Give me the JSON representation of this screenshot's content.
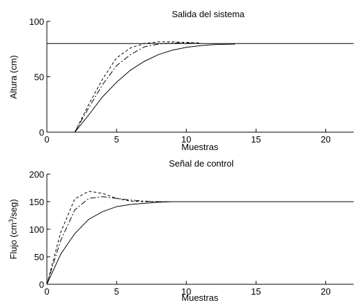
{
  "chart_data": [
    {
      "type": "line",
      "title": "Salida del sistema",
      "xlabel": "Muestras",
      "ylabel": "Altura (cm)",
      "xlim": [
        0,
        22
      ],
      "ylim": [
        0,
        100
      ],
      "xticks": [
        0,
        5,
        10,
        15,
        20
      ],
      "yticks": [
        0,
        50,
        100
      ],
      "grid": false,
      "series": [
        {
          "style": "solid",
          "x": [
            0,
            22
          ],
          "y": [
            80,
            80
          ]
        },
        {
          "style": "solid",
          "x": [
            2,
            3,
            4,
            5,
            6,
            7,
            8,
            9,
            10,
            11,
            12,
            13.5
          ],
          "y": [
            0,
            15.5,
            32,
            45,
            56,
            64,
            70,
            74,
            76.5,
            78,
            79,
            79.5
          ]
        },
        {
          "style": "dashdot",
          "x": [
            2,
            3,
            4,
            5,
            6,
            7,
            8,
            9,
            10,
            11
          ],
          "y": [
            0,
            22,
            43,
            60,
            70,
            77,
            79.5,
            80.5,
            80.5,
            80
          ]
        },
        {
          "style": "dashed",
          "x": [
            2,
            3,
            4,
            5,
            6,
            7,
            8,
            9,
            10,
            11
          ],
          "y": [
            0,
            25,
            48,
            67,
            76,
            80,
            81.5,
            81.5,
            81,
            80.5
          ]
        }
      ]
    },
    {
      "type": "line",
      "title": "Señal de control",
      "xlabel": "Muestras",
      "ylabel": "Flujo (cm",
      "ylabel_sup": "3",
      "ylabel_end": "/seg)",
      "xlim": [
        0,
        22
      ],
      "ylim": [
        0,
        200
      ],
      "xticks": [
        0,
        5,
        10,
        15,
        20
      ],
      "yticks": [
        0,
        50,
        100,
        150,
        200
      ],
      "grid": false,
      "series": [
        {
          "style": "solid",
          "x": [
            0,
            1,
            2,
            3,
            4,
            5,
            6,
            7,
            8,
            9,
            22
          ],
          "y": [
            0,
            55,
            92,
            118,
            132,
            141,
            145,
            147,
            149,
            150,
            150
          ]
        },
        {
          "style": "dashdot",
          "x": [
            0,
            1,
            2,
            3,
            4,
            5,
            6,
            7,
            8,
            9
          ],
          "y": [
            0,
            80,
            135,
            156,
            159,
            156,
            153,
            151,
            150,
            150
          ]
        },
        {
          "style": "dashed",
          "x": [
            0,
            1,
            2,
            3,
            4,
            5,
            6,
            7,
            8,
            9
          ],
          "y": [
            0,
            95,
            155,
            169,
            165,
            156,
            151,
            150,
            150,
            150
          ]
        }
      ]
    }
  ]
}
